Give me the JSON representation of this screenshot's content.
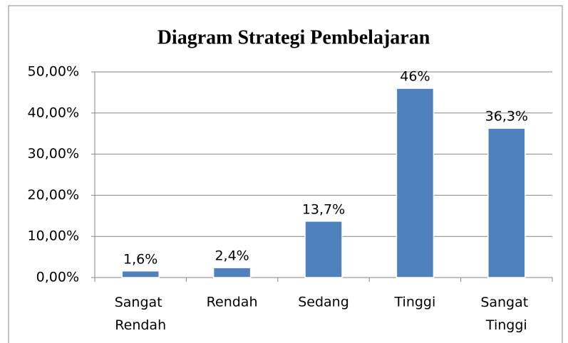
{
  "chart_data": {
    "type": "bar",
    "title": "Diagram Strategi Pembelajaran",
    "categories": [
      "Sangat Rendah",
      "Rendah",
      "Sedang",
      "Tinggi",
      "Sangat Tinggi"
    ],
    "values": [
      1.6,
      2.4,
      13.7,
      46,
      36.3
    ],
    "value_labels": [
      "1,6%",
      "2,4%",
      "13,7%",
      "46%",
      "36,3%"
    ],
    "color": "#4f81bd",
    "ylim": [
      0,
      50
    ],
    "yticks": [
      {
        "value": 0,
        "label": "0,00%"
      },
      {
        "value": 10,
        "label": "10,00%"
      },
      {
        "value": 20,
        "label": "20,00%"
      },
      {
        "value": 30,
        "label": "30,00%"
      },
      {
        "value": 40,
        "label": "40,00%"
      },
      {
        "value": 50,
        "label": "50,00%"
      }
    ],
    "grid": true
  }
}
